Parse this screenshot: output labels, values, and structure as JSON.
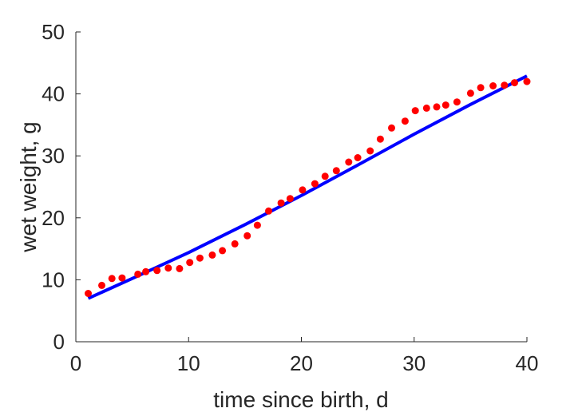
{
  "chart_data": {
    "type": "scatter",
    "xlabel": "time since birth, d",
    "ylabel": "wet weight, g",
    "xlim": [
      0,
      40
    ],
    "ylim": [
      0,
      50
    ],
    "xticks": [
      0,
      10,
      20,
      30,
      40
    ],
    "yticks": [
      0,
      10,
      20,
      30,
      40,
      50
    ],
    "grid": false,
    "colors": {
      "points": "#ff0000",
      "line": "#0000ff",
      "axis": "#262626"
    },
    "series": [
      {
        "kind": "scatter",
        "x": [
          1.1,
          2.3,
          3.2,
          4.1,
          5.5,
          6.2,
          7.2,
          8.2,
          9.2,
          10.1,
          11.0,
          12.1,
          13.0,
          14.1,
          15.2,
          16.1,
          17.1,
          18.2,
          19.0,
          20.1,
          21.2,
          22.1,
          23.1,
          24.2,
          25.0,
          26.1,
          27.0,
          28.0,
          29.2,
          30.1,
          31.1,
          32.0,
          32.8,
          33.8,
          35.0,
          35.9,
          37.0,
          38.0,
          38.9,
          40.0
        ],
        "y": [
          7.8,
          9.1,
          10.2,
          10.3,
          10.9,
          11.3,
          11.5,
          11.9,
          11.8,
          12.8,
          13.5,
          14.0,
          14.7,
          15.8,
          17.1,
          18.8,
          21.1,
          22.4,
          23.1,
          24.5,
          25.5,
          26.7,
          27.6,
          29.0,
          29.7,
          30.8,
          32.7,
          34.5,
          35.6,
          37.3,
          37.7,
          37.9,
          38.2,
          38.7,
          40.1,
          41.0,
          41.3,
          41.4,
          41.8,
          42.0
        ]
      },
      {
        "kind": "line",
        "x": [
          1.1,
          5,
          10,
          15,
          20,
          25,
          30,
          35,
          40
        ],
        "y": [
          7.0,
          10.2,
          14.4,
          18.9,
          23.6,
          28.5,
          33.5,
          38.3,
          42.9
        ]
      }
    ]
  }
}
